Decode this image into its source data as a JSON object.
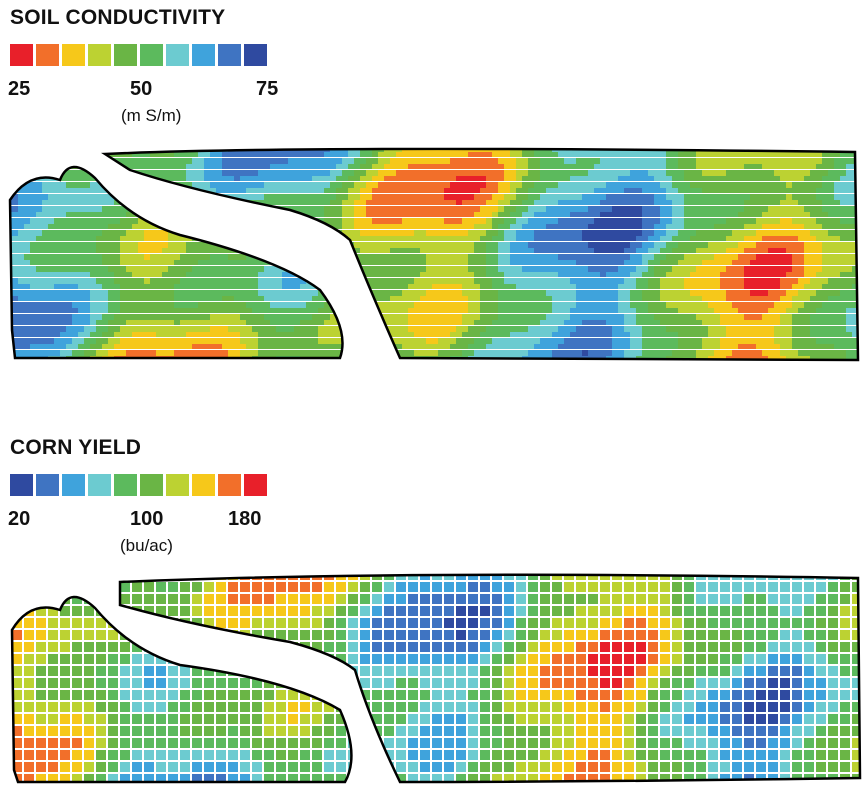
{
  "maps": [
    {
      "title": "SOIL CONDUCTIVITY",
      "legend": {
        "colors": [
          "#e8202a",
          "#f26f2a",
          "#f6c81a",
          "#bcd232",
          "#6ab545",
          "#5cba5d",
          "#6ccbd0",
          "#3fa3dc",
          "#3f74c2",
          "#2f4aa0"
        ],
        "ticks": [
          "25",
          "50",
          "75"
        ],
        "unit": "(m S/m)",
        "range": [
          25,
          75
        ]
      }
    },
    {
      "title": "CORN YIELD",
      "legend": {
        "colors": [
          "#2f4aa0",
          "#3f74c2",
          "#3fa3dc",
          "#6ccbd0",
          "#5cba5d",
          "#6ab545",
          "#bcd232",
          "#f6c81a",
          "#f26f2a",
          "#e8202a"
        ],
        "ticks": [
          "20",
          "100",
          "180"
        ],
        "unit": "(bu/ac)",
        "range": [
          20,
          180
        ]
      }
    }
  ]
}
